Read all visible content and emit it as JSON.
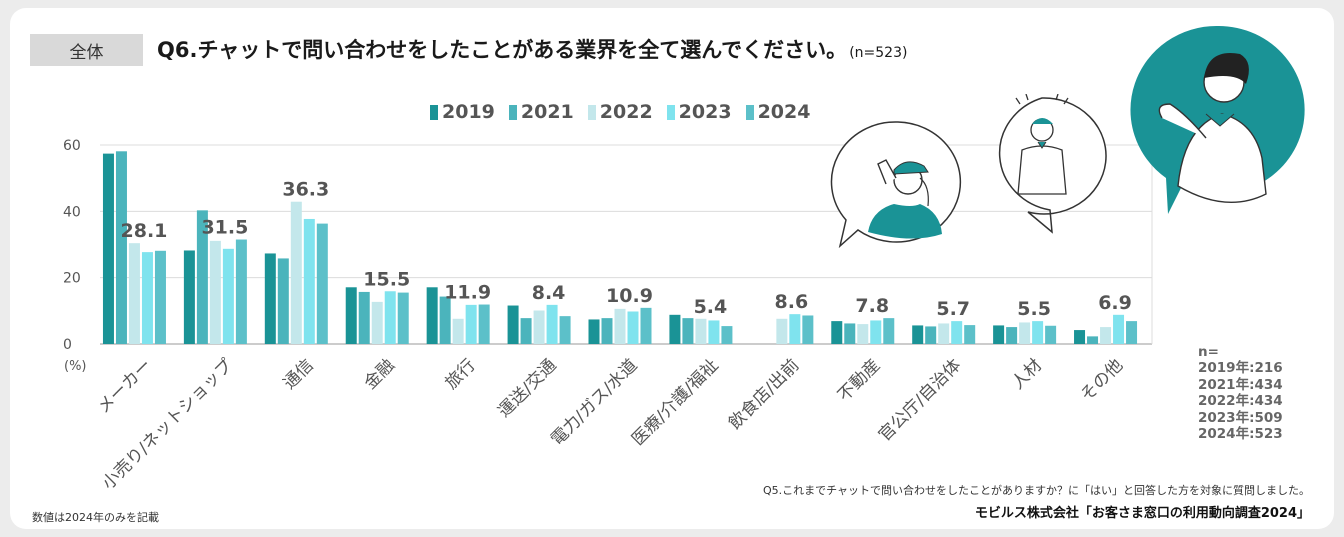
{
  "header": {
    "badge": "全体",
    "question": "Q6.チャットで問い合わせをしたことがある業界を全て選んでください。",
    "sample": "(n=523)"
  },
  "legend": [
    "2019",
    "2021",
    "2022",
    "2023",
    "2024"
  ],
  "colors": {
    "2019": "#1a9396",
    "2021": "#4bb4bc",
    "2022": "#c3e7eb",
    "2023": "#7fe3ee",
    "2024": "#5cc0c9",
    "accent": "#1a9396"
  },
  "chart_data": {
    "type": "bar",
    "ylabel": "(%)",
    "ylim": [
      0,
      60
    ],
    "yticks": [
      "0",
      "20",
      "40",
      "60"
    ],
    "categories": [
      "メーカー",
      "小売り/ネットショップ",
      "通信",
      "金融",
      "旅行",
      "運送/交通",
      "電力/ガス/水道",
      "医療/介護/福祉",
      "飲食店/出前",
      "不動産",
      "官公庁/自治体",
      "人材",
      "その他"
    ],
    "series": [
      {
        "name": "2019",
        "values": [
          57.4,
          28.2,
          27.3,
          17.1,
          17.1,
          11.6,
          7.4,
          8.8,
          null,
          6.9,
          5.6,
          5.6,
          4.2
        ]
      },
      {
        "name": "2021",
        "values": [
          58.1,
          40.3,
          25.8,
          15.7,
          14.3,
          7.8,
          7.8,
          7.8,
          null,
          6.2,
          5.3,
          5.1,
          2.3
        ]
      },
      {
        "name": "2022",
        "values": [
          30.4,
          31.1,
          42.9,
          12.7,
          7.6,
          10.1,
          10.6,
          7.6,
          7.6,
          6.0,
          6.2,
          6.5,
          5.1
        ]
      },
      {
        "name": "2023",
        "values": [
          27.7,
          28.7,
          37.7,
          15.9,
          11.8,
          11.8,
          9.8,
          7.1,
          9.0,
          7.1,
          6.9,
          6.9,
          8.8
        ]
      },
      {
        "name": "2024",
        "values": [
          28.1,
          31.5,
          36.3,
          15.5,
          11.9,
          8.4,
          10.9,
          5.4,
          8.6,
          7.8,
          5.7,
          5.5,
          6.9
        ]
      }
    ],
    "data_labels_2024": [
      "28.1",
      "31.5",
      "36.3",
      "15.5",
      "11.9",
      "8.4",
      "10.9",
      "5.4",
      "8.6",
      "7.8",
      "5.7",
      "5.5",
      "6.9"
    ]
  },
  "sample_sizes": {
    "heading": "n=",
    "rows": [
      "2019年:216",
      "2021年:434",
      "2022年:434",
      "2023年:509",
      "2024年:523"
    ]
  },
  "footnote": "Q5.これまでチャットで問い合わせをしたことがありますか？に「はい」と回答した方を対象に質問しました。",
  "source": "モビルス株式会社「お客さま窓口の利用動向調査2024」",
  "note": "数値は2024年のみを記載"
}
